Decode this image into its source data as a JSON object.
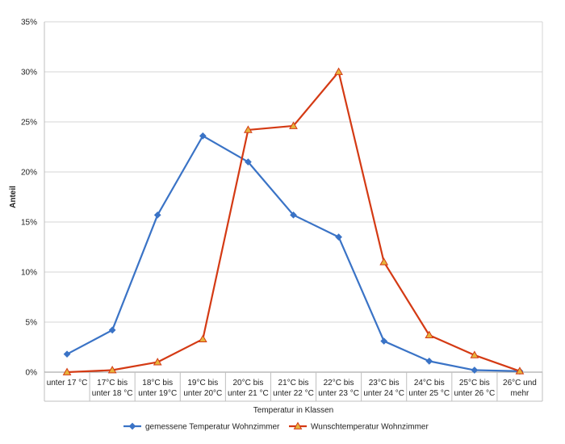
{
  "chart_data": {
    "type": "line",
    "ylabel": "Anteil",
    "xlabel": "Temperatur in Klassen",
    "ylim": [
      0,
      35
    ],
    "y_ticks": [
      "0%",
      "5%",
      "10%",
      "15%",
      "20%",
      "25%",
      "30%",
      "35%"
    ],
    "y_tick_values": [
      0,
      5,
      10,
      15,
      20,
      25,
      30,
      35
    ],
    "grid": true,
    "legend_position": "bottom",
    "categories": [
      [
        "unter 17 °C"
      ],
      [
        "17°C bis",
        "unter 18 °C"
      ],
      [
        "18°C bis",
        "unter 19°C"
      ],
      [
        "19°C bis",
        "unter 20°C"
      ],
      [
        "20°C bis",
        "unter 21 °C"
      ],
      [
        "21°C bis",
        "unter 22 °C"
      ],
      [
        "22°C bis",
        "unter 23 °C"
      ],
      [
        "23°C bis",
        "unter 24 °C"
      ],
      [
        "24°C bis",
        "unter 25 °C"
      ],
      [
        "25°C bis",
        "unter 26 °C"
      ],
      [
        "26°C und",
        "mehr"
      ]
    ],
    "series": [
      {
        "name": "gemessene Temperatur Wohnzimmer",
        "color": "#3a73c6",
        "marker": "diamond",
        "values": [
          1.8,
          4.2,
          15.7,
          23.6,
          21.0,
          15.7,
          13.5,
          3.1,
          1.1,
          0.2,
          0.1
        ]
      },
      {
        "name": "Wunschtemperatur Wohnzimmer",
        "color": "#d43a14",
        "marker": "triangle",
        "marker_fill": "#e6b43c",
        "values": [
          0.0,
          0.2,
          1.0,
          3.3,
          24.2,
          24.6,
          30.0,
          11.0,
          3.7,
          1.7,
          0.1
        ]
      }
    ]
  }
}
